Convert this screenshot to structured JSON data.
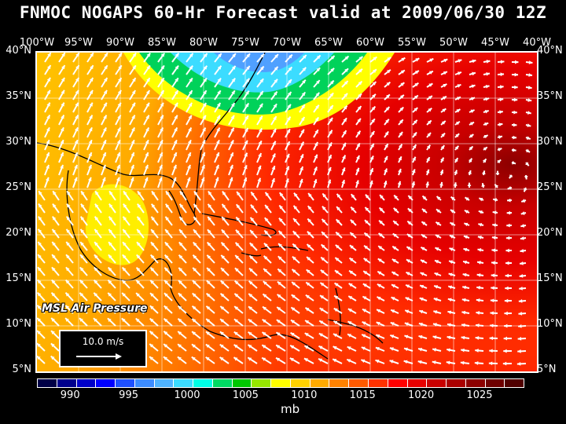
{
  "title": "FNMOC NOGAPS 60-Hr Forecast valid at 2009/06/30 12Z",
  "lon_labels": [
    "100°W",
    "95°W",
    "90°W",
    "85°W",
    "80°W",
    "75°W",
    "70°W",
    "65°W",
    "60°W",
    "55°W",
    "50°W",
    "45°W",
    "40°W"
  ],
  "lat_labels": [
    "40°N",
    "35°N",
    "30°N",
    "25°N",
    "20°N",
    "15°N",
    "10°N",
    "5°N"
  ],
  "field_label": "MSL Air Pressure",
  "vector_scale": "10.0 m/s",
  "colorbar": {
    "colors": [
      "#000046",
      "#00008c",
      "#0000c8",
      "#0000ff",
      "#1e50ff",
      "#3c8cff",
      "#50b4ff",
      "#3cdcff",
      "#00ffe6",
      "#00dc64",
      "#00c800",
      "#96e600",
      "#ffff00",
      "#ffd200",
      "#ffaa00",
      "#ff8200",
      "#ff5a00",
      "#ff3200",
      "#ff0000",
      "#e60000",
      "#c80000",
      "#aa0000",
      "#8c0000",
      "#6e0000",
      "#500000"
    ],
    "tick_labels": [
      "990",
      "995",
      "1000",
      "1005",
      "1010",
      "1015",
      "1020",
      "1025"
    ],
    "unit": "mb"
  }
}
